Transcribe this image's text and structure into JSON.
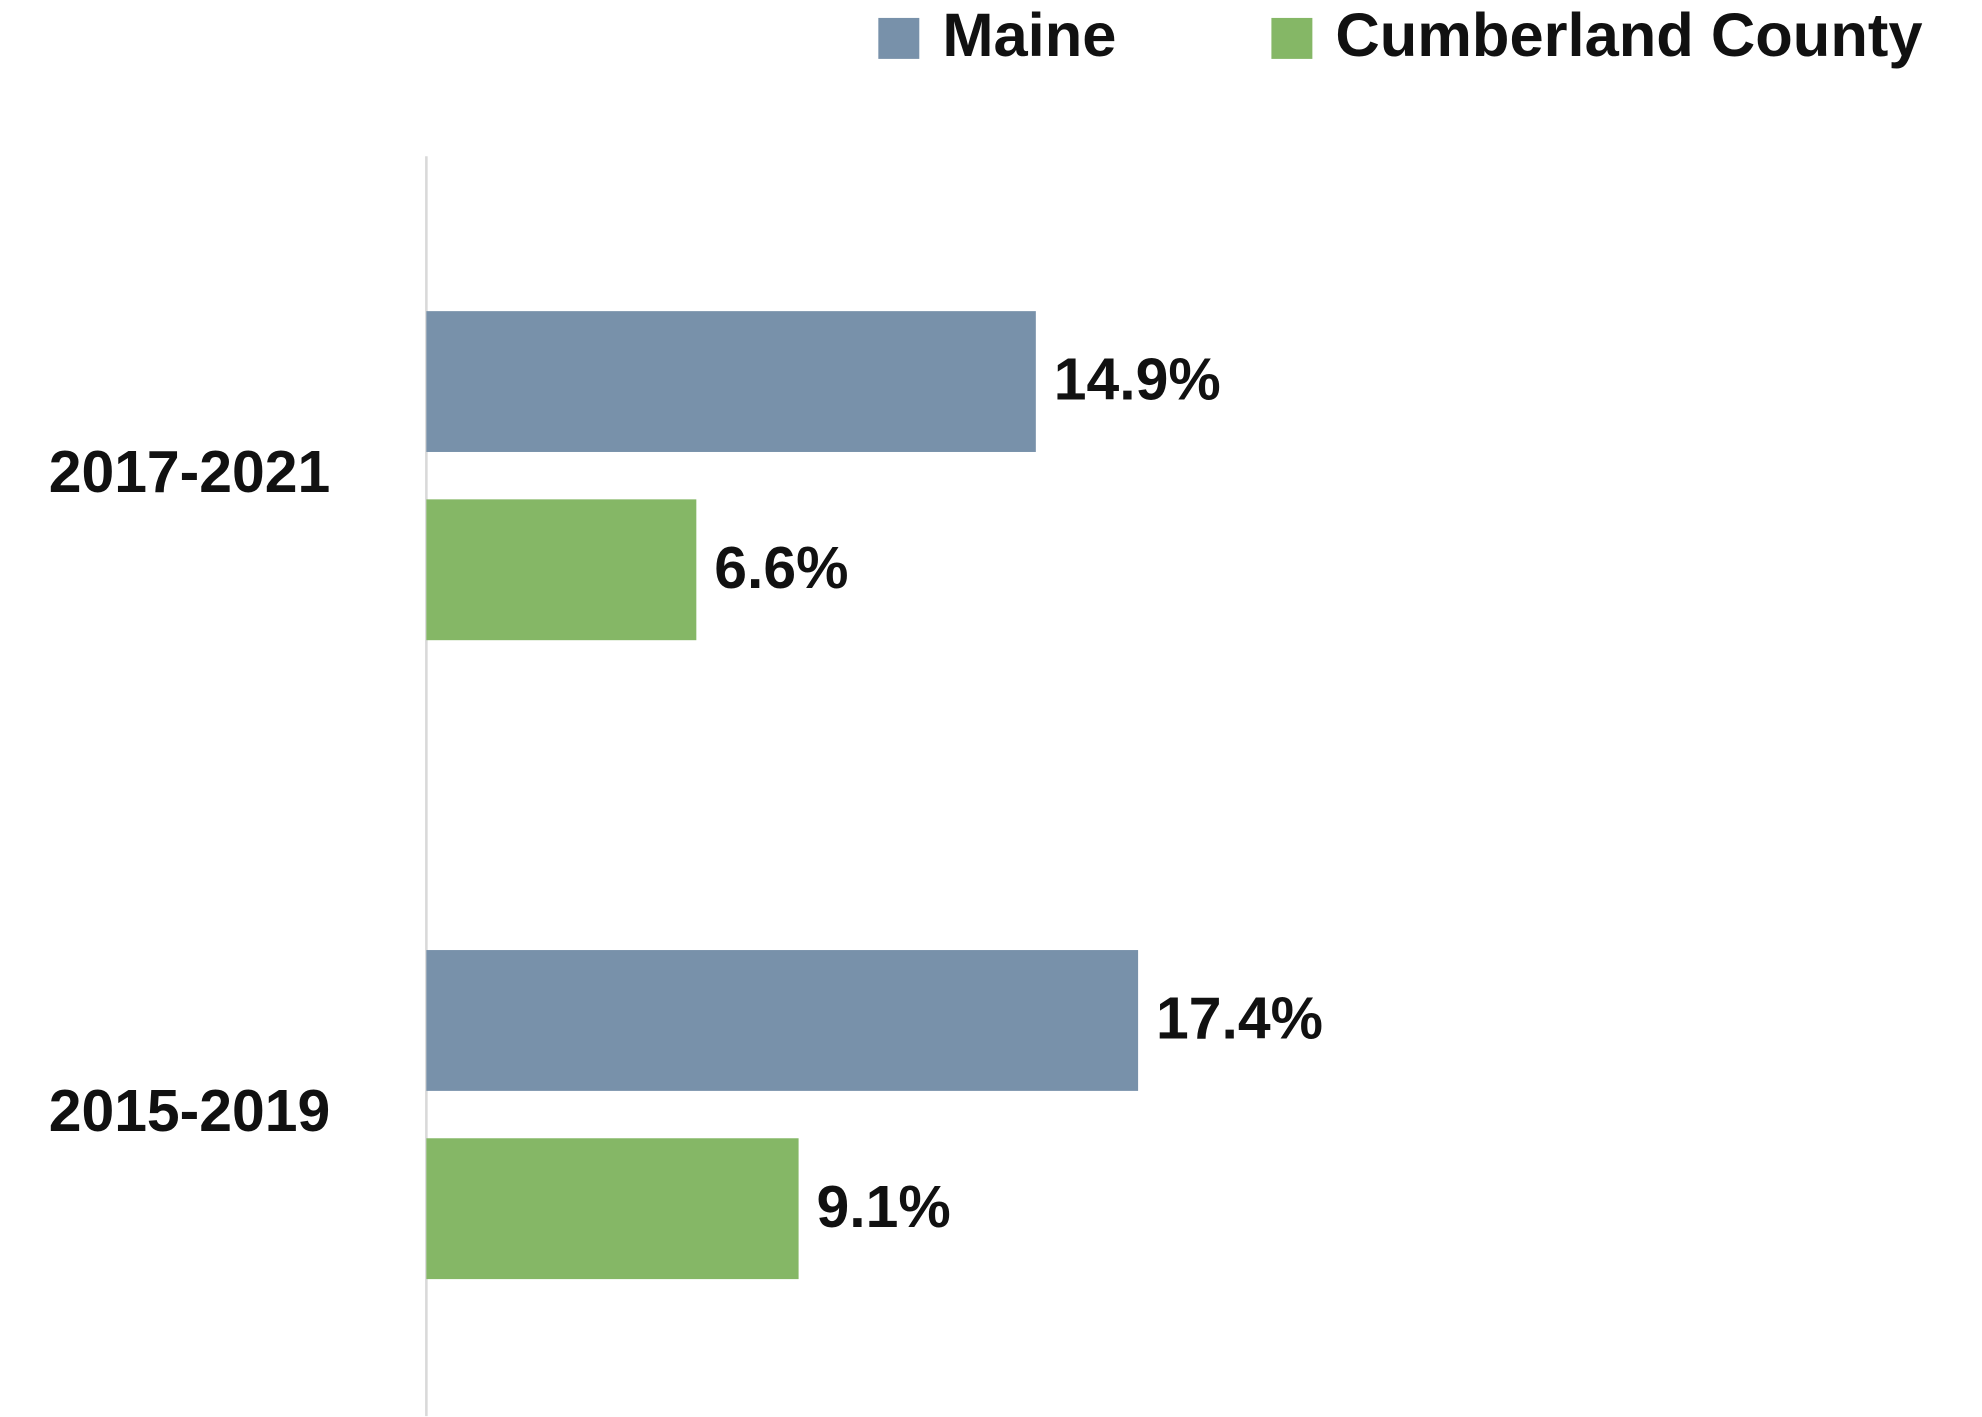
{
  "chart_data": {
    "type": "hbar",
    "categories": [
      "2017-2021",
      "2015-2019"
    ],
    "series": [
      {
        "name": "Maine",
        "color": "#7891aa",
        "values": [
          14.9,
          17.4
        ],
        "value_labels": [
          "14.9%",
          "17.4%"
        ]
      },
      {
        "name": "Cumberland County",
        "color": "#85b766",
        "values": [
          6.6,
          9.1
        ],
        "value_labels": [
          "6.6%",
          "9.1%"
        ]
      }
    ],
    "xlim": [
      0,
      38
    ],
    "legend": "top-right"
  }
}
